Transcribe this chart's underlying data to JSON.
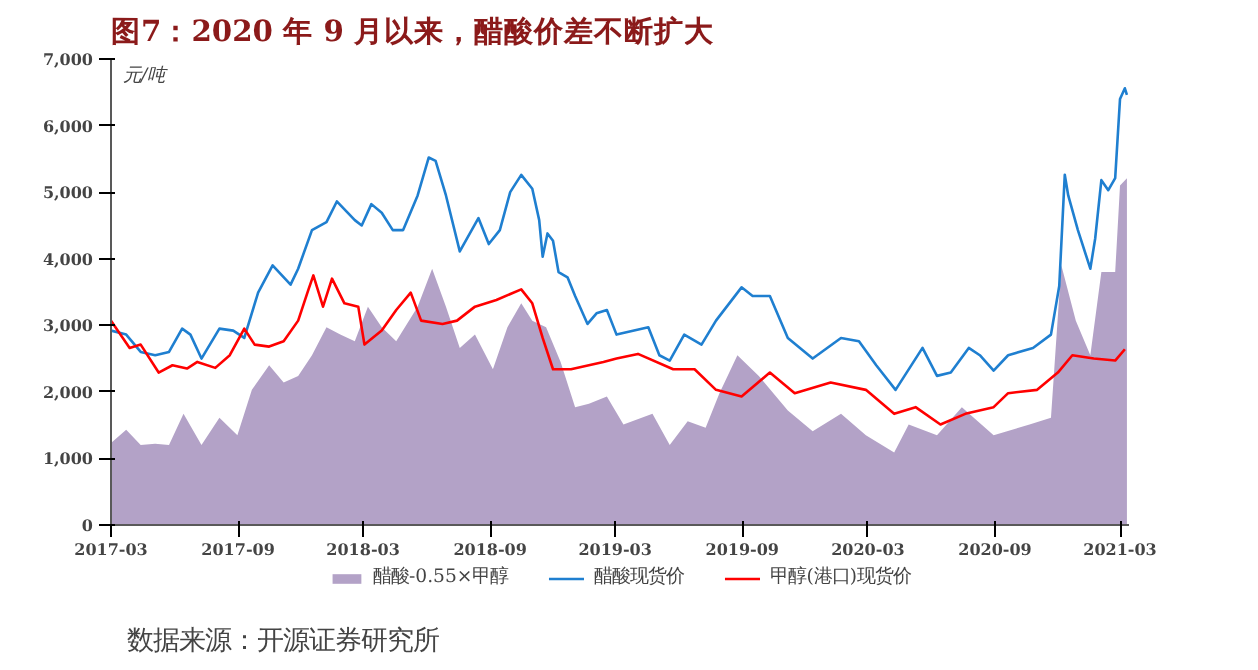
{
  "chart_data": {
    "type": "line",
    "title": "图7：2020 年 9 月以来，醋酸价差不断扩大",
    "ylabel": "元/吨",
    "annotations": [
      "数据来源：开源证券研究所"
    ],
    "xlim": [
      "2017-03-01",
      "2021-03-14"
    ],
    "xticks": [
      "2017-03",
      "2017-09",
      "2018-03",
      "2018-09",
      "2019-03",
      "2019-09",
      "2020-03",
      "2020-09",
      "2021-03"
    ],
    "ylim": [
      0,
      7000
    ],
    "yticks": [
      0,
      {
        "value": 1000,
        "label": "1,000"
      },
      {
        "value": 2000,
        "label": "2,000"
      },
      {
        "value": 3000,
        "label": "3,000"
      },
      {
        "value": 4000,
        "label": "4,000"
      },
      {
        "value": 5000,
        "label": "5,000"
      },
      {
        "value": 6000,
        "label": "6,000"
      },
      {
        "value": 7000,
        "label": "7,000"
      }
    ],
    "grid": false,
    "legend": "bottom",
    "marker": "none",
    "line_style": "solid",
    "series": [
      {
        "name": "醋酸-0.55×甲醇",
        "type": "area",
        "color": "#b3a2c7",
        "x": [
          "2017-03-01",
          "2017-03-23",
          "2017-04-13",
          "2017-05-04",
          "2017-05-24",
          "2017-06-14",
          "2017-07-10",
          "2017-08-05",
          "2017-08-31",
          "2017-09-21",
          "2017-10-16",
          "2017-11-06",
          "2017-11-27",
          "2017-12-17",
          "2018-01-07",
          "2018-01-27",
          "2018-02-17",
          "2018-03-08",
          "2018-03-28",
          "2018-04-18",
          "2018-05-19",
          "2018-06-09",
          "2018-06-29",
          "2018-07-19",
          "2018-08-10",
          "2018-09-05",
          "2018-09-26",
          "2018-10-16",
          "2018-11-01",
          "2018-11-21",
          "2018-12-12",
          "2019-01-02",
          "2019-01-22",
          "2019-02-17",
          "2019-03-13",
          "2019-04-24",
          "2019-05-19",
          "2019-06-14",
          "2019-07-10",
          "2019-07-30",
          "2019-08-25",
          "2019-09-25",
          "2019-11-06",
          "2019-12-12",
          "2020-01-22",
          "2020-02-27",
          "2020-04-08",
          "2020-04-29",
          "2020-06-09",
          "2020-07-15",
          "2020-08-30",
          "2020-10-21",
          "2020-11-21",
          "2020-12-06",
          "2020-12-27",
          "2021-01-17",
          "2021-02-02",
          "2021-02-22",
          "2021-03-01",
          "2021-03-11"
        ],
        "values": [
          1230,
          1430,
          1200,
          1220,
          1200,
          1670,
          1200,
          1610,
          1350,
          2030,
          2400,
          2140,
          2240,
          2550,
          2970,
          2860,
          2760,
          3280,
          2970,
          2760,
          3280,
          3850,
          3280,
          2660,
          2860,
          2340,
          2970,
          3330,
          3070,
          2970,
          2450,
          1770,
          1820,
          1930,
          1510,
          1670,
          1200,
          1560,
          1460,
          1980,
          2550,
          2240,
          1720,
          1410,
          1670,
          1350,
          1090,
          1510,
          1350,
          1770,
          1350,
          1510,
          1610,
          3900,
          3070,
          2550,
          3800,
          3800,
          5100,
          5210
        ]
      },
      {
        "name": "醋酸现货价",
        "type": "line",
        "color": "#1f7fd0",
        "x": [
          "2017-03-01",
          "2017-03-23",
          "2017-04-13",
          "2017-05-04",
          "2017-05-24",
          "2017-06-12",
          "2017-06-24",
          "2017-07-10",
          "2017-08-05",
          "2017-08-25",
          "2017-09-10",
          "2017-09-30",
          "2017-10-21",
          "2017-11-16",
          "2017-11-27",
          "2017-12-17",
          "2018-01-07",
          "2018-01-22",
          "2018-02-17",
          "2018-02-27",
          "2018-03-13",
          "2018-03-28",
          "2018-04-13",
          "2018-04-28",
          "2018-05-19",
          "2018-06-04",
          "2018-06-14",
          "2018-06-29",
          "2018-07-19",
          "2018-08-15",
          "2018-08-30",
          "2018-09-15",
          "2018-09-30",
          "2018-10-16",
          "2018-11-01",
          "2018-11-11",
          "2018-11-16",
          "2018-11-23",
          "2018-12-01",
          "2018-12-09",
          "2018-12-22",
          "2019-01-02",
          "2019-01-20",
          "2019-02-02",
          "2019-02-17",
          "2019-03-03",
          "2019-04-18",
          "2019-05-04",
          "2019-05-19",
          "2019-06-09",
          "2019-07-04",
          "2019-07-25",
          "2019-08-31",
          "2019-09-16",
          "2019-10-11",
          "2019-11-06",
          "2019-12-12",
          "2020-01-22",
          "2020-02-17",
          "2020-03-13",
          "2020-04-10",
          "2020-05-19",
          "2020-06-09",
          "2020-06-29",
          "2020-07-25",
          "2020-08-10",
          "2020-08-30",
          "2020-09-20",
          "2020-10-26",
          "2020-11-21",
          "2020-12-03",
          "2020-12-11",
          "2020-12-16",
          "2020-12-30",
          "2021-01-17",
          "2021-01-24",
          "2021-02-02",
          "2021-02-12",
          "2021-02-22",
          "2021-03-01",
          "2021-03-08",
          "2021-03-11"
        ],
        "values": [
          2920,
          2860,
          2600,
          2550,
          2600,
          2950,
          2860,
          2500,
          2950,
          2920,
          2810,
          3490,
          3900,
          3610,
          3850,
          4430,
          4550,
          4860,
          4580,
          4500,
          4820,
          4690,
          4430,
          4430,
          4950,
          5520,
          5470,
          4950,
          4110,
          4610,
          4220,
          4430,
          5000,
          5260,
          5050,
          4580,
          4030,
          4380,
          4270,
          3800,
          3720,
          3440,
          3020,
          3180,
          3230,
          2860,
          2970,
          2550,
          2470,
          2860,
          2710,
          3070,
          3570,
          3440,
          3440,
          2810,
          2500,
          2810,
          2760,
          2400,
          2030,
          2660,
          2240,
          2290,
          2660,
          2550,
          2320,
          2550,
          2660,
          2860,
          3590,
          5260,
          4950,
          4430,
          3850,
          4300,
          5180,
          5030,
          5210,
          6400,
          6560,
          6460
        ]
      },
      {
        "name": "甲醇(港口)现货价",
        "type": "line",
        "color": "#ff0000",
        "x": [
          "2017-03-01",
          "2017-03-28",
          "2017-04-13",
          "2017-05-09",
          "2017-05-29",
          "2017-06-19",
          "2017-07-04",
          "2017-07-30",
          "2017-08-20",
          "2017-09-10",
          "2017-09-25",
          "2017-10-16",
          "2017-11-06",
          "2017-11-27",
          "2017-12-12",
          "2017-12-19",
          "2018-01-02",
          "2018-01-15",
          "2018-02-02",
          "2018-02-22",
          "2018-03-03",
          "2018-03-28",
          "2018-04-18",
          "2018-05-09",
          "2018-05-24",
          "2018-06-24",
          "2018-07-15",
          "2018-08-10",
          "2018-09-10",
          "2018-10-16",
          "2018-11-01",
          "2018-11-16",
          "2018-12-01",
          "2018-12-27",
          "2019-02-12",
          "2019-03-03",
          "2019-04-03",
          "2019-05-24",
          "2019-06-24",
          "2019-07-25",
          "2019-08-31",
          "2019-10-11",
          "2019-11-16",
          "2020-01-07",
          "2020-02-27",
          "2020-04-08",
          "2020-05-09",
          "2020-06-14",
          "2020-07-20",
          "2020-08-30",
          "2020-09-20",
          "2020-11-01",
          "2020-12-01",
          "2020-12-22",
          "2021-01-22",
          "2021-02-22",
          "2021-03-08"
        ],
        "values": [
          3070,
          2660,
          2710,
          2290,
          2400,
          2350,
          2450,
          2360,
          2550,
          2950,
          2710,
          2680,
          2760,
          3070,
          3540,
          3750,
          3280,
          3700,
          3330,
          3280,
          2710,
          2920,
          3230,
          3490,
          3070,
          3020,
          3070,
          3280,
          3380,
          3540,
          3330,
          2810,
          2340,
          2340,
          2450,
          2500,
          2570,
          2340,
          2340,
          2030,
          1930,
          2290,
          1980,
          2140,
          2030,
          1670,
          1770,
          1510,
          1670,
          1770,
          1980,
          2030,
          2290,
          2550,
          2500,
          2470,
          2640
        ]
      }
    ]
  }
}
